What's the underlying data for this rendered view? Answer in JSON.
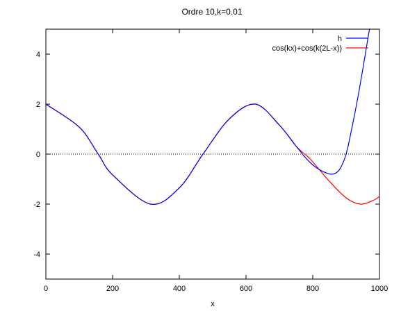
{
  "chart_data": {
    "type": "line",
    "title": "Ordre 10,k=0.01",
    "xlabel": "x",
    "ylabel": "",
    "xlim": [
      0,
      1000
    ],
    "ylim": [
      -5,
      5
    ],
    "xticks": [
      "0",
      "200",
      "400",
      "600",
      "800",
      "1000"
    ],
    "yticks": [
      "4",
      "2",
      "0",
      "-2",
      "-4"
    ],
    "legend_position": "top-right",
    "zero_line": "dotted",
    "series": [
      {
        "name": "h",
        "color": "#0000ff",
        "x": [
          0,
          100,
          157,
          200,
          314,
          400,
          471,
          550,
          628,
          700,
          750,
          780,
          800,
          820,
          840,
          860,
          880,
          900,
          920,
          940,
          960,
          970
        ],
        "y": [
          2.0,
          1.08,
          0.0,
          -0.83,
          -2.0,
          -1.35,
          0.0,
          1.41,
          2.0,
          1.16,
          0.32,
          -0.17,
          -0.43,
          -0.62,
          -0.75,
          -0.8,
          -0.62,
          0.0,
          1.22,
          2.62,
          4.2,
          5.0
        ]
      },
      {
        "name": "cos(kx)+cos(k(2L-x))",
        "color": "#ff0000",
        "x": [
          0,
          100,
          157,
          200,
          314,
          400,
          471,
          550,
          628,
          700,
          750,
          785,
          800,
          850,
          900,
          942,
          980,
          1000
        ],
        "y": [
          2.0,
          1.08,
          0.0,
          -0.83,
          -2.0,
          -1.35,
          0.0,
          1.41,
          2.0,
          1.16,
          0.32,
          -0.1,
          -0.31,
          -1.09,
          -1.75,
          -2.0,
          -1.86,
          -1.7
        ]
      }
    ]
  }
}
